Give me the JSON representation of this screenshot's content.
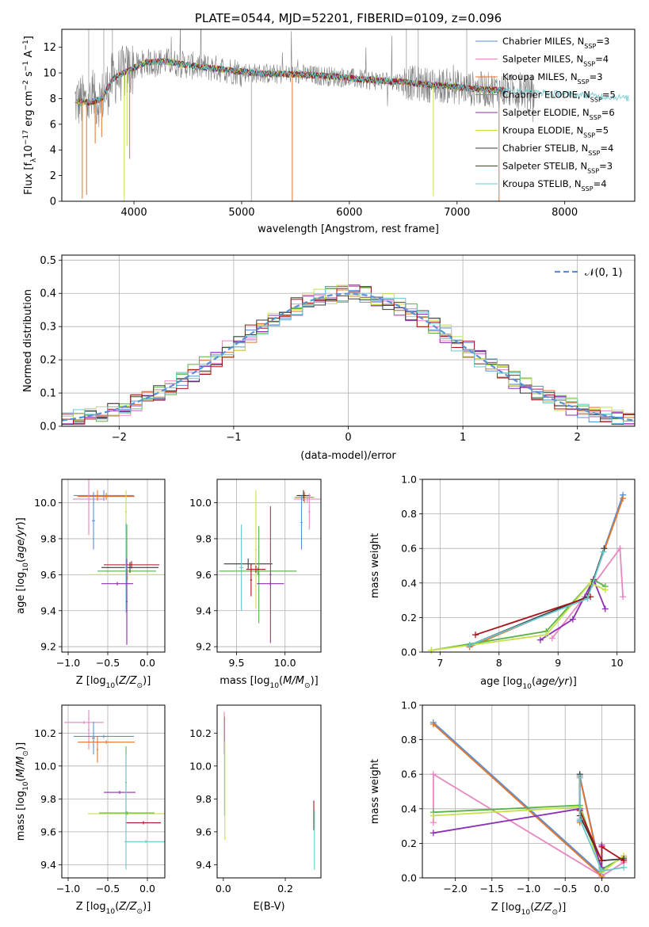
{
  "chart_data": [
    {
      "type": "line",
      "title": "PLATE=0544, MJD=52201, FIBERID=0109, z=0.096",
      "xlabel": "wavelength [Angstrom, rest frame]",
      "ylabel": "Flux [f_λ10^-17 erg cm^-2 s^-1 A^-1]",
      "xlim": [
        3330,
        8650
      ],
      "ylim": [
        0,
        13.4
      ],
      "xticks": [
        "4000",
        "5000",
        "6000",
        "7000",
        "8000"
      ],
      "xtick_values": [
        4000,
        5000,
        6000,
        7000,
        8000
      ],
      "yticks": [
        "0",
        "2",
        "4",
        "6",
        "8",
        "10",
        "12"
      ],
      "ytick_values": [
        0,
        2,
        4,
        6,
        8,
        10,
        12
      ],
      "legend_position": "upper-right",
      "grid": false,
      "spectrum_profile": {
        "x": [
          3450,
          3600,
          3700,
          3800,
          3900,
          4000,
          4100,
          4300,
          4500,
          4700,
          4900,
          5100,
          5300,
          5500,
          5700,
          5900,
          6100,
          6300,
          6500,
          6700,
          6900,
          7100,
          7300,
          7500,
          7700,
          7900,
          8100,
          8300,
          8500,
          8600
        ],
        "y": [
          7.8,
          7.7,
          8.0,
          9.5,
          10.0,
          10.4,
          10.8,
          10.9,
          10.6,
          10.4,
          10.2,
          10.0,
          9.9,
          9.9,
          9.8,
          9.7,
          9.5,
          9.4,
          9.3,
          9.1,
          9.0,
          8.8,
          8.7,
          8.6,
          8.5,
          8.4,
          8.3,
          8.2,
          8.1,
          8.0
        ]
      },
      "series": [
        {
          "name": "Chabrier MILES, N_SSP=3",
          "color": "#5b8fd6"
        },
        {
          "name": "Salpeter MILES, N_SSP=4",
          "color": "#e788c2"
        },
        {
          "name": "Kroupa MILES, N_SSP=3",
          "color": "#e3742b"
        },
        {
          "name": "Chabrier ELODIE, N_SSP=5",
          "color": "#59b247"
        },
        {
          "name": "Salpeter ELODIE, N_SSP=6",
          "color": "#8e2fb5"
        },
        {
          "name": "Kroupa ELODIE, N_SSP=5",
          "color": "#c6e14a"
        },
        {
          "name": "Chabrier STELIB, N_SSP=4",
          "color": "#3a3a3a"
        },
        {
          "name": "Salpeter STELIB, N_SSP=3",
          "color": "#a8141c"
        },
        {
          "name": "Kroupa STELIB, N_SSP=4",
          "color": "#67c8cf"
        }
      ]
    },
    {
      "type": "line",
      "title": "",
      "xlabel": "(data-model)/error",
      "ylabel": "Normed distribution",
      "xlim": [
        -2.5,
        2.5
      ],
      "ylim": [
        0,
        0.515
      ],
      "xticks": [
        "−2",
        "−1",
        "0",
        "1",
        "2"
      ],
      "xtick_values": [
        -2,
        -1,
        0,
        1,
        2
      ],
      "yticks": [
        "0.0",
        "0.1",
        "0.2",
        "0.3",
        "0.4",
        "0.5"
      ],
      "ytick_values": [
        0,
        0.1,
        0.2,
        0.3,
        0.4,
        0.5
      ],
      "grid": true,
      "legend_position": "upper-right",
      "reference_curve": {
        "name": "𝒩(0, 1)",
        "mu": 0,
        "sigma": 1,
        "color": "#5b8fd6",
        "dashed": true
      },
      "histogram_bin_width": 0.1
    },
    {
      "type": "scatter",
      "xlabel": "Z [log10(Z/Z⊙)]",
      "ylabel": "age  [log10(age/yr)]",
      "xlim": [
        -1.08,
        0.22
      ],
      "ylim": [
        9.17,
        10.13
      ],
      "xticks": [
        "−1.0",
        "−0.5",
        "0.0"
      ],
      "xtick_values": [
        -1.0,
        -0.5,
        0.0
      ],
      "yticks": [
        "9.2",
        "9.4",
        "9.6",
        "9.8",
        "10.0"
      ],
      "ytick_values": [
        9.2,
        9.4,
        9.6,
        9.8,
        10.0
      ],
      "grid": true,
      "errorbars": [
        {
          "x": -0.55,
          "y": 10.04,
          "xerr": 0.38,
          "yerr": 0.03,
          "color": "#5b8fd6"
        },
        {
          "x": -0.52,
          "y": 10.035,
          "xerr": 0.36,
          "yerr": 0.02,
          "color": "#e3742b"
        },
        {
          "x": -0.74,
          "y": 10.02,
          "xerr": 0.2,
          "yerr": 0.2,
          "color": "#e788c2"
        },
        {
          "x": -0.68,
          "y": 9.9,
          "xerr": 0.02,
          "yerr": 0.16,
          "color": "#5b8fd6"
        },
        {
          "x": -0.63,
          "y": 10.04,
          "xerr": 0.01,
          "yerr": 0.03,
          "color": "#e3742b"
        },
        {
          "x": -0.27,
          "y": 9.95,
          "xerr": 0.01,
          "yerr": 0.12,
          "color": "#c6e14a"
        },
        {
          "x": -0.26,
          "y": 9.62,
          "xerr": 0.37,
          "yerr": 0.26,
          "color": "#59b247"
        },
        {
          "x": -0.25,
          "y": 9.6,
          "xerr": 0.5,
          "yerr": 0.03,
          "color": "#c6e14a"
        },
        {
          "x": -0.22,
          "y": 9.64,
          "xerr": 0.36,
          "yerr": 0.03,
          "color": "#3a3a3a"
        },
        {
          "x": -0.2,
          "y": 9.655,
          "xerr": 0.35,
          "yerr": 0.02,
          "color": "#a8141c"
        },
        {
          "x": -0.27,
          "y": 9.64,
          "xerr": 0.02,
          "yerr": 0.25,
          "color": "#67c8cf"
        },
        {
          "x": -0.38,
          "y": 9.55,
          "xerr": 0.2,
          "yerr": 0.01,
          "color": "#8e2fb5"
        },
        {
          "x": -0.26,
          "y": 9.45,
          "xerr": 0.01,
          "yerr": 0.24,
          "color": "#8e2fb5"
        }
      ]
    },
    {
      "type": "scatter",
      "xlabel": "mass [log10(M/M⊙)]",
      "ylabel": "",
      "xlim": [
        9.3,
        10.37
      ],
      "ylim": [
        9.17,
        10.13
      ],
      "xticks": [
        "9.5",
        "10.0"
      ],
      "xtick_values": [
        9.5,
        10.0
      ],
      "yticks": [
        "9.2",
        "9.4",
        "9.6",
        "9.8",
        "10.0"
      ],
      "ytick_values": [
        9.2,
        9.4,
        9.6,
        9.8,
        10.0
      ],
      "grid": true,
      "errorbars": [
        {
          "x": 10.2,
          "y": 10.03,
          "xerr": 0.1,
          "yerr": 0.03,
          "color": "#e3742b"
        },
        {
          "x": 10.19,
          "y": 10.04,
          "xerr": 0.07,
          "yerr": 0.03,
          "color": "#3a3a3a"
        },
        {
          "x": 10.23,
          "y": 10.02,
          "xerr": 0.14,
          "yerr": 0.02,
          "color": "#e788c2"
        },
        {
          "x": 10.17,
          "y": 9.89,
          "xerr": 0.01,
          "yerr": 0.15,
          "color": "#5b8fd6"
        },
        {
          "x": 10.25,
          "y": 9.95,
          "xerr": 0.01,
          "yerr": 0.1,
          "color": "#e788c2"
        },
        {
          "x": 9.62,
          "y": 9.66,
          "xerr": 0.25,
          "yerr": 0.03,
          "color": "#3a3a3a"
        },
        {
          "x": 9.55,
          "y": 9.64,
          "xerr": 0.02,
          "yerr": 0.24,
          "color": "#67c8cf"
        },
        {
          "x": 9.72,
          "y": 9.62,
          "xerr": 0.4,
          "yerr": 0.02,
          "color": "#59b247"
        },
        {
          "x": 9.7,
          "y": 9.74,
          "xerr": 0.01,
          "yerr": 0.33,
          "color": "#c6e14a"
        },
        {
          "x": 9.73,
          "y": 9.6,
          "xerr": 0.01,
          "yerr": 0.27,
          "color": "#59b247"
        },
        {
          "x": 9.65,
          "y": 9.57,
          "xerr": 0.01,
          "yerr": 0.09,
          "color": "#a8141c"
        },
        {
          "x": 9.7,
          "y": 9.63,
          "xerr": 0.1,
          "yerr": 0.02,
          "color": "#a8141c"
        },
        {
          "x": 9.85,
          "y": 9.6,
          "xerr": 0.01,
          "yerr": 0.38,
          "color": "#8e2fb5"
        },
        {
          "x": 9.85,
          "y": 9.55,
          "xerr": 0.14,
          "yerr": 0.01,
          "color": "#8e2fb5"
        }
      ]
    },
    {
      "type": "line",
      "xlabel": "age  [log10(age/yr)]",
      "ylabel": "mass weight",
      "xlim": [
        6.7,
        10.3
      ],
      "ylim": [
        0,
        1.0
      ],
      "xticks": [
        "7",
        "8",
        "9",
        "10"
      ],
      "xtick_values": [
        7,
        8,
        9,
        10
      ],
      "yticks": [
        "0.0",
        "0.2",
        "0.4",
        "0.6",
        "0.8",
        "1.0"
      ],
      "ytick_values": [
        0,
        0.2,
        0.4,
        0.6,
        0.8,
        1.0
      ],
      "grid": true,
      "series": [
        {
          "name": "Chabrier MILES",
          "color": "#5b8fd6",
          "x": [
            7.5,
            9.5,
            10.1
          ],
          "y": [
            0.03,
            0.32,
            0.91
          ]
        },
        {
          "name": "Salpeter MILES",
          "color": "#e788c2",
          "x": [
            8.9,
            9.45,
            10.05,
            10.1
          ],
          "y": [
            0.08,
            0.32,
            0.6,
            0.32
          ]
        },
        {
          "name": "Kroupa MILES",
          "color": "#e3742b",
          "x": [
            7.5,
            9.5,
            10.1
          ],
          "y": [
            0.03,
            0.32,
            0.89
          ]
        },
        {
          "name": "Chabrier ELODIE",
          "color": "#59b247",
          "x": [
            6.85,
            8.8,
            9.6,
            9.8
          ],
          "y": [
            0.01,
            0.12,
            0.42,
            0.38
          ]
        },
        {
          "name": "Salpeter ELODIE",
          "color": "#8e2fb5",
          "x": [
            8.7,
            9.25,
            9.6,
            9.8
          ],
          "y": [
            0.07,
            0.19,
            0.42,
            0.25
          ]
        },
        {
          "name": "Kroupa ELODIE",
          "color": "#c6e14a",
          "x": [
            6.85,
            8.8,
            9.55,
            9.8
          ],
          "y": [
            0.01,
            0.1,
            0.4,
            0.36
          ]
        },
        {
          "name": "Chabrier STELIB",
          "color": "#3a3a3a",
          "x": [
            7.5,
            9.5,
            9.78
          ],
          "y": [
            0.04,
            0.32,
            0.6
          ]
        },
        {
          "name": "Salpeter STELIB",
          "color": "#a8141c",
          "x": [
            7.6,
            9.55
          ],
          "y": [
            0.1,
            0.32
          ]
        },
        {
          "name": "Kroupa STELIB",
          "color": "#67c8cf",
          "x": [
            7.5,
            9.5,
            9.77
          ],
          "y": [
            0.04,
            0.31,
            0.58
          ]
        }
      ]
    },
    {
      "type": "scatter",
      "xlabel": "Z [log10(Z/Z⊙)]",
      "ylabel": "mass [log10(M/M⊙)]",
      "xlim": [
        -1.08,
        0.22
      ],
      "ylim": [
        9.32,
        10.37
      ],
      "xticks": [
        "−1.0",
        "−0.5",
        "0.0"
      ],
      "xtick_values": [
        -1.0,
        -0.5,
        0.0
      ],
      "yticks": [
        "9.4",
        "9.6",
        "9.8",
        "10.0",
        "10.2"
      ],
      "ytick_values": [
        9.4,
        9.6,
        9.8,
        10.0,
        10.2
      ],
      "grid": true,
      "errorbars": [
        {
          "x": -0.8,
          "y": 10.265,
          "xerr": 0.25,
          "yerr": 0.01,
          "color": "#e788c2"
        },
        {
          "x": -0.74,
          "y": 10.22,
          "xerr": 0.01,
          "yerr": 0.12,
          "color": "#e788c2"
        },
        {
          "x": -0.55,
          "y": 10.18,
          "xerr": 0.38,
          "yerr": 0.01,
          "color": "#5b8fd6"
        },
        {
          "x": -0.68,
          "y": 10.17,
          "xerr": 0.02,
          "yerr": 0.1,
          "color": "#5b8fd6"
        },
        {
          "x": -0.52,
          "y": 10.145,
          "xerr": 0.36,
          "yerr": 0.01,
          "color": "#e3742b"
        },
        {
          "x": -0.63,
          "y": 10.1,
          "xerr": 0.01,
          "yerr": 0.08,
          "color": "#e3742b"
        },
        {
          "x": -0.27,
          "y": 9.9,
          "xerr": 0.01,
          "yerr": 0.22,
          "color": "#59b247"
        },
        {
          "x": -0.35,
          "y": 9.84,
          "xerr": 0.2,
          "yerr": 0.01,
          "color": "#8e2fb5"
        },
        {
          "x": -0.25,
          "y": 9.71,
          "xerr": 0.5,
          "yerr": 0.01,
          "color": "#c6e14a"
        },
        {
          "x": -0.26,
          "y": 9.715,
          "xerr": 0.35,
          "yerr": 0.01,
          "color": "#59b247"
        },
        {
          "x": -0.05,
          "y": 9.655,
          "xerr": 0.22,
          "yerr": 0.01,
          "color": "#a8141c"
        },
        {
          "x": -0.02,
          "y": 9.54,
          "xerr": 0.27,
          "yerr": 0.01,
          "color": "#67c8cf"
        },
        {
          "x": -0.27,
          "y": 9.72,
          "xerr": 0.01,
          "yerr": 0.35,
          "color": "#67c8cf"
        }
      ]
    },
    {
      "type": "scatter",
      "xlabel": "E(B-V)",
      "ylabel": "",
      "xlim": [
        -0.02,
        0.315
      ],
      "ylim": [
        9.32,
        10.37
      ],
      "xticks": [
        "0.0",
        "0.2"
      ],
      "xtick_values": [
        0.0,
        0.2
      ],
      "yticks": [
        "9.4",
        "9.6",
        "9.8",
        "10.0",
        "10.2"
      ],
      "ytick_values": [
        9.4,
        9.6,
        9.8,
        10.0,
        10.2
      ],
      "grid": false,
      "errorbars": [
        {
          "x": 0.003,
          "y": 10.2,
          "xerr": 0,
          "yerr": 0.13,
          "color": "#e788c2"
        },
        {
          "x": 0.004,
          "y": 10.0,
          "xerr": 0,
          "yerr": 0.3,
          "color": "#59b247"
        },
        {
          "x": 0.005,
          "y": 9.85,
          "xerr": 0,
          "yerr": 0.3,
          "color": "#c6e14a"
        },
        {
          "x": 0.292,
          "y": 9.7,
          "xerr": 0,
          "yerr": 0.09,
          "color": "#a8141c"
        },
        {
          "x": 0.294,
          "y": 9.55,
          "xerr": 0,
          "yerr": 0.18,
          "color": "#67c8cf"
        }
      ]
    },
    {
      "type": "line",
      "xlabel": "Z [log10(Z/Z⊙)]",
      "ylabel": "mass weight",
      "xlim": [
        -2.45,
        0.45
      ],
      "ylim": [
        0,
        1.0
      ],
      "xticks": [
        "−2.0",
        "−1.5",
        "−1.0",
        "−0.5",
        "0.0"
      ],
      "xtick_values": [
        -2.0,
        -1.5,
        -1.0,
        -0.5,
        0.0
      ],
      "yticks": [
        "0.0",
        "0.2",
        "0.4",
        "0.6",
        "0.8",
        "1.0"
      ],
      "ytick_values": [
        0,
        0.2,
        0.4,
        0.6,
        0.8,
        1.0
      ],
      "grid": true,
      "series": [
        {
          "name": "Chabrier MILES",
          "color": "#5b8fd6",
          "x": [
            -2.3,
            0.0,
            -0.3,
            -0.3
          ],
          "y": [
            0.9,
            0.02,
            0.59,
            0.33
          ]
        },
        {
          "name": "Salpeter MILES",
          "color": "#e788c2",
          "x": [
            -2.3,
            -2.3,
            0.0,
            0.3
          ],
          "y": [
            0.32,
            0.6,
            0.01,
            0.09
          ]
        },
        {
          "name": "Kroupa MILES",
          "color": "#e3742b",
          "x": [
            -2.3,
            0.0,
            -0.3,
            -0.3
          ],
          "y": [
            0.89,
            0.01,
            0.58,
            0.32
          ]
        },
        {
          "name": "Chabrier ELODIE",
          "color": "#59b247",
          "x": [
            -2.3,
            -0.3,
            0.0,
            0.3
          ],
          "y": [
            0.38,
            0.42,
            0.05,
            0.12
          ]
        },
        {
          "name": "Salpeter ELODIE",
          "color": "#8e2fb5",
          "x": [
            -2.3,
            -0.3,
            0.0,
            0.0
          ],
          "y": [
            0.26,
            0.4,
            0.06,
            0.19
          ]
        },
        {
          "name": "Kroupa ELODIE",
          "color": "#c6e14a",
          "x": [
            -2.3,
            -0.3,
            0.0,
            0.3
          ],
          "y": [
            0.36,
            0.41,
            0.03,
            0.13
          ]
        },
        {
          "name": "Chabrier STELIB",
          "color": "#3a3a3a",
          "x": [
            -0.3,
            -0.3,
            0.0,
            0.3
          ],
          "y": [
            0.6,
            0.36,
            0.1,
            0.11
          ]
        },
        {
          "name": "Salpeter STELIB",
          "color": "#a8141c",
          "x": [
            -0.3,
            0.0,
            0.0,
            0.3
          ],
          "y": [
            0.39,
            0.1,
            0.18,
            0.1
          ]
        },
        {
          "name": "Kroupa STELIB",
          "color": "#67c8cf",
          "x": [
            -0.3,
            -0.3,
            0.0,
            0.3
          ],
          "y": [
            0.58,
            0.34,
            0.04,
            0.06
          ]
        }
      ]
    }
  ]
}
